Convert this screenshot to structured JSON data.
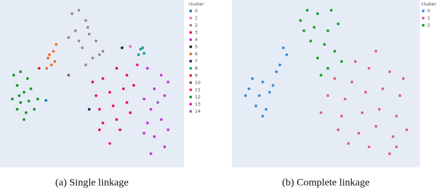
{
  "chart_data": [
    {
      "type": "scatter",
      "caption": "(a) Single linkage",
      "legend_title": "cluster",
      "xlim": [
        0,
        268
      ],
      "ylim": [
        0,
        245
      ],
      "series": [
        {
          "name": "0",
          "color": "#1f77b4",
          "x": [
            67
          ],
          "y": [
            98
          ]
        },
        {
          "name": "1",
          "color": "#e377c2",
          "x": [
            190
          ],
          "y": [
            177
          ]
        },
        {
          "name": "2",
          "color": "#a0888f",
          "x": [
            105,
            115,
            125,
            110,
            130,
            100,
            140,
            120,
            135,
            125,
            145,
            115,
            150,
            128
          ],
          "y": [
            225,
            230,
            215,
            200,
            195,
            190,
            185,
            175,
            160,
            150,
            165,
            185,
            170,
            205
          ]
        },
        {
          "name": "3",
          "color": "#e8185d",
          "x": [
            135,
            150,
            170,
            185,
            140,
            160,
            180,
            195,
            145,
            165,
            185,
            150,
            170,
            190,
            145,
            175
          ],
          "y": [
            125,
            130,
            145,
            135,
            105,
            110,
            115,
            120,
            85,
            90,
            95,
            65,
            70,
            80,
            55,
            55
          ]
        },
        {
          "name": "4",
          "color": "#cc33dd",
          "x": [
            215,
            235,
            245,
            225,
            210,
            240,
            220,
            235,
            215,
            245,
            225,
            240,
            220,
            210
          ],
          "y": [
            145,
            135,
            125,
            115,
            100,
            105,
            85,
            70,
            65,
            55,
            45,
            30,
            20,
            50
          ]
        },
        {
          "name": "5",
          "color": "#222222",
          "x": [
            178
          ],
          "y": [
            175
          ]
        },
        {
          "name": "6",
          "color": "#f07020",
          "x": [
            70,
            78,
            82,
            75,
            68,
            80,
            72
          ],
          "y": [
            160,
            170,
            180,
            150,
            145,
            155,
            165
          ]
        },
        {
          "name": "7",
          "color": "#2b2b6b",
          "x": [
            130
          ],
          "y": [
            85
          ]
        },
        {
          "name": "8",
          "color": "#1aa391",
          "x": [
            205,
            210,
            202,
            208
          ],
          "y": [
            173,
            167,
            165,
            175
          ]
        },
        {
          "name": "9",
          "color": "#d62728",
          "x": [
            57
          ],
          "y": [
            145
          ]
        },
        {
          "name": "10",
          "color": "#8c564b",
          "x": [
            100
          ],
          "y": [
            135
          ]
        },
        {
          "name": "11",
          "color": "#e7298a",
          "x": [
            160
          ],
          "y": [
            35
          ]
        },
        {
          "name": "12",
          "color": "#1a9a2a",
          "x": [
            20,
            30,
            40,
            25,
            35,
            45,
            18,
            30,
            42,
            55,
            25,
            38,
            50,
            35,
            28
          ],
          "y": [
            135,
            140,
            130,
            120,
            110,
            115,
            100,
            95,
            97,
            100,
            85,
            80,
            85,
            70,
            105
          ]
        },
        {
          "name": "13",
          "color": "#ff1493",
          "x": [
            200
          ],
          "y": [
            150
          ]
        },
        {
          "name": "14",
          "color": "#9467bd",
          "x": [
            230
          ],
          "y": [
            95
          ]
        }
      ]
    },
    {
      "type": "scatter",
      "caption": "(b) Complete linkage",
      "legend_title": "cluster",
      "xlim": [
        0,
        274
      ],
      "ylim": [
        0,
        245
      ],
      "series": [
        {
          "name": "0",
          "color": "#3b8fd9",
          "x": [
            75,
            80,
            70,
            65,
            30,
            45,
            25,
            40,
            55,
            35,
            50,
            45,
            20,
            60
          ],
          "y": [
            175,
            165,
            150,
            140,
            130,
            125,
            115,
            105,
            110,
            90,
            85,
            75,
            105,
            120
          ]
        },
        {
          "name": "1",
          "color": "#e0608a",
          "x": [
            210,
            180,
            200,
            150,
            175,
            230,
            250,
            140,
            165,
            195,
            220,
            245,
            130,
            160,
            190,
            215,
            240,
            155,
            185,
            210,
            235,
            200,
            230,
            170,
            255,
            240
          ],
          "y": [
            170,
            155,
            145,
            130,
            125,
            140,
            130,
            105,
            100,
            110,
            115,
            105,
            80,
            75,
            80,
            85,
            75,
            55,
            50,
            60,
            45,
            30,
            20,
            35,
            55,
            30
          ]
        },
        {
          "name": "2",
          "color": "#1fa02a",
          "x": [
            110,
            125,
            145,
            100,
            120,
            140,
            155,
            115,
            135,
            150,
            125,
            160,
            140,
            130,
            105
          ],
          "y": [
            230,
            225,
            230,
            215,
            205,
            200,
            210,
            185,
            180,
            170,
            160,
            155,
            145,
            135,
            200
          ]
        }
      ]
    }
  ]
}
